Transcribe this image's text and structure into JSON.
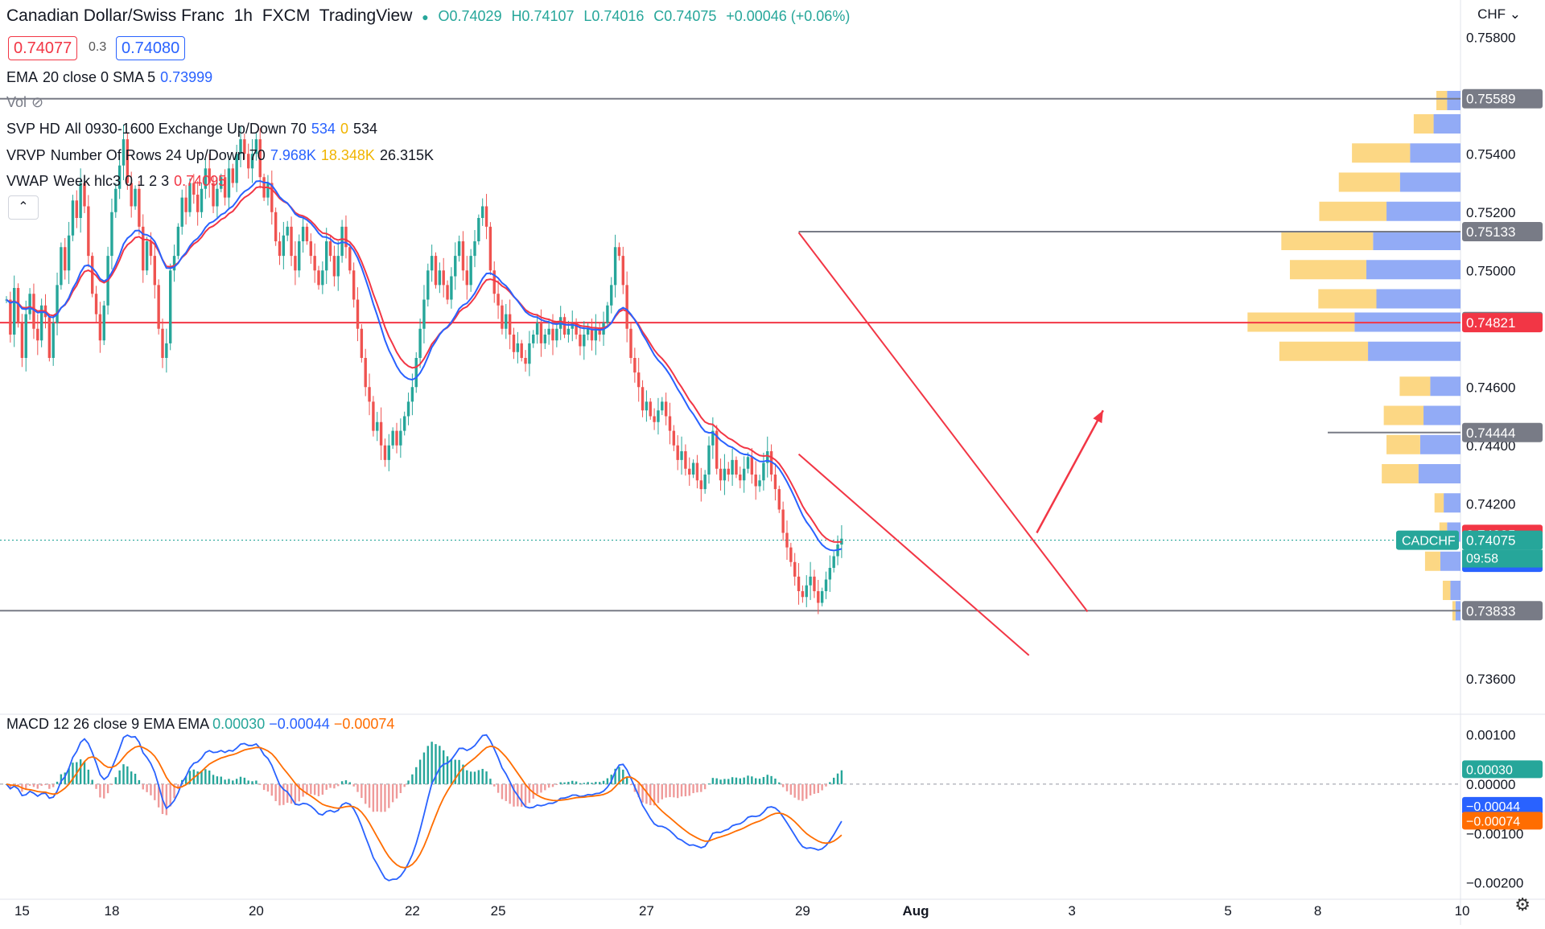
{
  "header": {
    "title": "Canadian Dollar/Swiss Franc",
    "interval": "1h",
    "exchange": "FXCM",
    "platform": "TradingView",
    "open": "O0.74029",
    "high": "H0.74107",
    "low": "L0.74016",
    "close": "C0.74075",
    "change": "+0.00046 (+0.06%)",
    "sell_price": "0.74077",
    "spread": "0.3",
    "buy_price": "0.74080",
    "currency": "CHF"
  },
  "indicators": {
    "ema": {
      "name": "EMA",
      "params": "20 close 0 SMA 5",
      "value": "0.73999"
    },
    "vol": {
      "name": "Vol"
    },
    "svp": {
      "name": "SVP HD",
      "params": "All 0930-1600 Exchange Up/Down 70",
      "v1": "534",
      "v2": "0",
      "v3": "534"
    },
    "vrvp": {
      "name": "VRVP",
      "params": "Number Of Rows 24 Up/Down 70",
      "v1": "7.968K",
      "v2": "18.348K",
      "v3": "26.315K"
    },
    "vwap": {
      "name": "VWAP",
      "params": "Week hlc3 0 1 2 3",
      "value": "0.74095"
    },
    "macd": {
      "name": "MACD",
      "params": "12 26 close 9 EMA EMA",
      "hist": "0.00030",
      "macd": "−0.00044",
      "signal": "−0.00074"
    }
  },
  "colors": {
    "up": "#26a69a",
    "down": "#ef5350",
    "ema": "#2962ff",
    "vwap": "#f23645",
    "resistance": "#787b86",
    "macd_line": "#2962ff",
    "signal_line": "#ff6d00",
    "vp_up": "#7f9cf5",
    "vp_down": "#fbd06e"
  },
  "chart_data": {
    "type": "candlestick",
    "symbol": "CADCHF",
    "timeframe": "1h",
    "y_axis": {
      "min": 0.735,
      "max": 0.759,
      "ticks": [
        0.758,
        0.754,
        0.752,
        0.75,
        0.746,
        0.744,
        0.742,
        0.736
      ],
      "tick_labels": [
        "0.75800",
        "0.75400",
        "0.75200",
        "0.75000",
        "0.74600",
        "0.74400",
        "0.74200",
        "0.73600"
      ]
    },
    "x_axis": {
      "labels": [
        "15",
        "18",
        "20",
        "22",
        "25",
        "27",
        "29",
        "Aug",
        "3",
        "5",
        "8",
        "10"
      ],
      "label_positions_in_bars": [
        4,
        27,
        64,
        104,
        126,
        164,
        204,
        233,
        273,
        313,
        336,
        373
      ]
    },
    "ohlc_close_path": [
      0.749,
      0.7478,
      0.7494,
      0.7482,
      0.747,
      0.7485,
      0.7492,
      0.748,
      0.7476,
      0.7488,
      0.7484,
      0.747,
      0.7482,
      0.7495,
      0.7508,
      0.75,
      0.7512,
      0.7524,
      0.7518,
      0.753,
      0.7522,
      0.7505,
      0.7492,
      0.7485,
      0.7476,
      0.7488,
      0.7505,
      0.752,
      0.7528,
      0.7536,
      0.7545,
      0.753,
      0.7522,
      0.7528,
      0.7515,
      0.75,
      0.751,
      0.7505,
      0.7495,
      0.748,
      0.747,
      0.7475,
      0.75,
      0.7505,
      0.7515,
      0.7525,
      0.752,
      0.753,
      0.7526,
      0.752,
      0.7528,
      0.7535,
      0.753,
      0.7522,
      0.7528,
      0.7532,
      0.7525,
      0.7535,
      0.753,
      0.754,
      0.7545,
      0.754,
      0.7535,
      0.754,
      0.7545,
      0.7532,
      0.7525,
      0.753,
      0.752,
      0.751,
      0.7505,
      0.7512,
      0.7515,
      0.7505,
      0.75,
      0.751,
      0.7515,
      0.751,
      0.7505,
      0.75,
      0.7495,
      0.75,
      0.751,
      0.7505,
      0.7498,
      0.7505,
      0.7515,
      0.7508,
      0.75,
      0.749,
      0.748,
      0.747,
      0.746,
      0.7455,
      0.7445,
      0.7448,
      0.744,
      0.7435,
      0.744,
      0.7445,
      0.744,
      0.7445,
      0.745,
      0.7455,
      0.746,
      0.747,
      0.748,
      0.749,
      0.75,
      0.7505,
      0.7495,
      0.75,
      0.7495,
      0.749,
      0.7498,
      0.7505,
      0.751,
      0.75,
      0.7495,
      0.7505,
      0.751,
      0.7518,
      0.7522,
      0.7515,
      0.75,
      0.7492,
      0.7488,
      0.748,
      0.7485,
      0.7478,
      0.7472,
      0.7475,
      0.747,
      0.7468,
      0.7475,
      0.7478,
      0.7482,
      0.7475,
      0.7478,
      0.748,
      0.7476,
      0.748,
      0.7484,
      0.7478,
      0.748,
      0.7482,
      0.7478,
      0.7474,
      0.7478,
      0.748,
      0.7476,
      0.748,
      0.7478,
      0.7482,
      0.7488,
      0.7495,
      0.7508,
      0.7505,
      0.7495,
      0.748,
      0.747,
      0.7465,
      0.746,
      0.7452,
      0.7455,
      0.745,
      0.7448,
      0.7452,
      0.7455,
      0.745,
      0.7445,
      0.744,
      0.7435,
      0.7438,
      0.7432,
      0.743,
      0.7434,
      0.7428,
      0.7425,
      0.743,
      0.744,
      0.7445,
      0.7432,
      0.7428,
      0.7432,
      0.743,
      0.7435,
      0.743,
      0.7428,
      0.7432,
      0.7436,
      0.743,
      0.7426,
      0.7428,
      0.7434,
      0.7438,
      0.743,
      0.7425,
      0.7418,
      0.741,
      0.7405,
      0.74,
      0.7395,
      0.739,
      0.7388,
      0.7392,
      0.7395,
      0.739,
      0.7386,
      0.739,
      0.7394,
      0.7398,
      0.7402,
      0.7406,
      0.7408
    ],
    "ema_value": 0.73999,
    "vwap_value": 0.74095,
    "horizontal_levels": [
      {
        "label": "0.75589",
        "value": 0.75589,
        "color": "#787b86"
      },
      {
        "label": "0.75133",
        "value": 0.75133,
        "color": "#787b86"
      },
      {
        "label": "0.74825",
        "value": 0.74825,
        "color": "#787b86"
      },
      {
        "label": "0.74821",
        "value": 0.74821,
        "color": "#f23645"
      },
      {
        "label": "0.74444",
        "value": 0.74444,
        "color": "#787b86"
      },
      {
        "label": "0.74095",
        "value": 0.74095,
        "color": "#f23645"
      },
      {
        "label": "0.74075",
        "value": 0.74075,
        "color": "#26a69a"
      },
      {
        "label": "0.73999",
        "value": 0.73999,
        "color": "#2962ff"
      },
      {
        "label": "0.73833",
        "value": 0.73833,
        "color": "#787b86"
      }
    ],
    "current_price_label": {
      "symbol": "CADCHF",
      "price": "0.74075",
      "countdown": "09:58"
    },
    "volume_profile_rows": [
      {
        "price": 0.7558,
        "up": 0.08,
        "down": 0.07
      },
      {
        "price": 0.755,
        "up": 0.16,
        "down": 0.13
      },
      {
        "price": 0.754,
        "up": 0.3,
        "down": 0.38
      },
      {
        "price": 0.753,
        "up": 0.36,
        "down": 0.4
      },
      {
        "price": 0.752,
        "up": 0.44,
        "down": 0.44
      },
      {
        "price": 0.751,
        "up": 0.52,
        "down": 0.6
      },
      {
        "price": 0.75,
        "up": 0.56,
        "down": 0.5
      },
      {
        "price": 0.749,
        "up": 0.5,
        "down": 0.38
      },
      {
        "price": 0.7482,
        "up": 0.63,
        "down": 0.7
      },
      {
        "price": 0.7472,
        "up": 0.55,
        "down": 0.58
      },
      {
        "price": 0.746,
        "up": 0.18,
        "down": 0.2
      },
      {
        "price": 0.745,
        "up": 0.22,
        "down": 0.26
      },
      {
        "price": 0.744,
        "up": 0.24,
        "down": 0.22
      },
      {
        "price": 0.743,
        "up": 0.25,
        "down": 0.24
      },
      {
        "price": 0.742,
        "up": 0.1,
        "down": 0.06
      },
      {
        "price": 0.741,
        "up": 0.08,
        "down": 0.05
      },
      {
        "price": 0.74,
        "up": 0.12,
        "down": 0.1
      },
      {
        "price": 0.739,
        "up": 0.06,
        "down": 0.05
      },
      {
        "price": 0.7383,
        "up": 0.03,
        "down": 0.02
      }
    ],
    "channel": {
      "upper": [
        {
          "bar": 203,
          "price": 0.7513
        },
        {
          "bar": 277,
          "price": 0.7383
        }
      ],
      "lower": [
        {
          "bar": 203,
          "price": 0.7437
        },
        {
          "bar": 262,
          "price": 0.7368
        }
      ]
    },
    "arrow": {
      "from": {
        "bar": 264,
        "price": 0.741
      },
      "to": {
        "bar": 281,
        "price": 0.7452
      }
    },
    "macd": {
      "y_axis": {
        "ticks": [
          0.001,
          0.0,
          -0.001,
          -0.002
        ],
        "tick_labels": [
          "0.00100",
          "0.00000",
          "−0.00100",
          "−0.00200"
        ],
        "min": -0.0022,
        "max": 0.0013
      },
      "labels": {
        "hist": "0.00030",
        "macd": "−0.00044",
        "signal": "−0.00074"
      }
    }
  }
}
